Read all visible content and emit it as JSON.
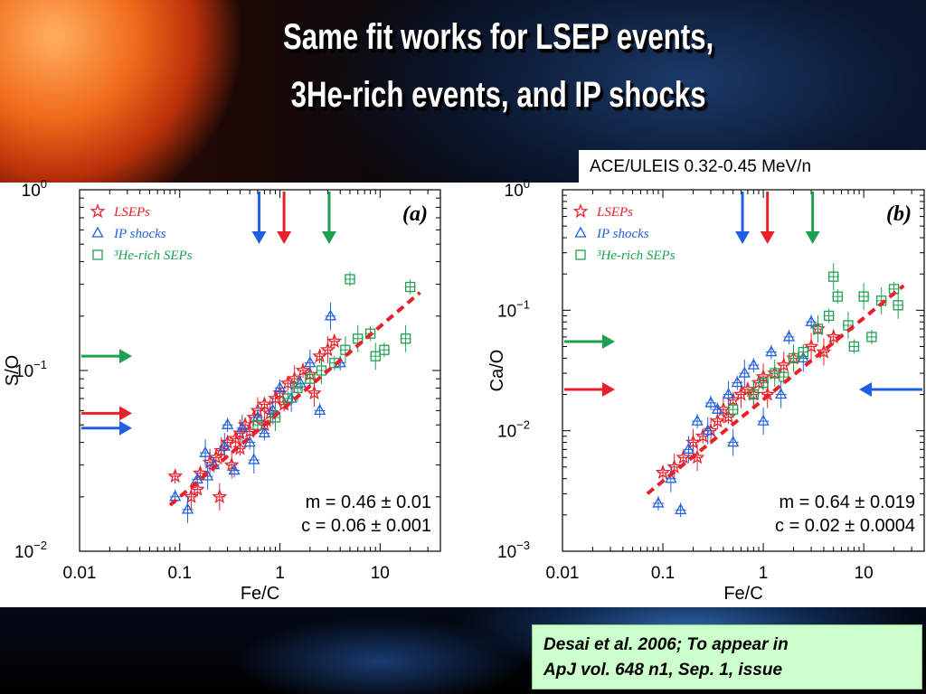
{
  "slide": {
    "title_line1": "Same fit works for  LSEP events,",
    "title_line2": "3He-rich events, and IP shocks",
    "instrument_label": "ACE/ULEIS 0.32-0.45 MeV/n",
    "citation_line1": "Desai et al. 2006; To appear in",
    "citation_line2": "ApJ vol. 648 n1, Sep. 1, issue"
  },
  "colors": {
    "lsep": "#e8202a",
    "ip": "#2060e0",
    "he3": "#1fa050"
  },
  "chart_data": [
    {
      "type": "scatter",
      "panel_label": "(a)",
      "xlabel": "Fe/C",
      "ylabel": "S/O",
      "x_scale": "log",
      "y_scale": "log",
      "xlim": [
        0.01,
        40
      ],
      "ylim": [
        0.01,
        1
      ],
      "x_ticks": [
        {
          "v": 0.01,
          "label": "0.01"
        },
        {
          "v": 0.1,
          "label": "0.1"
        },
        {
          "v": 1,
          "label": "1"
        },
        {
          "v": 10,
          "label": "10"
        }
      ],
      "y_ticks": [
        {
          "v": 1,
          "base": "10",
          "exp": "0"
        },
        {
          "v": 0.1,
          "base": "10",
          "exp": "−1"
        },
        {
          "v": 0.01,
          "base": "10",
          "exp": "−2"
        }
      ],
      "legend": [
        {
          "name": "LSEPs",
          "marker": "star"
        },
        {
          "name": "IP shocks",
          "marker": "triangle"
        },
        {
          "name": "³He-rich SEPs",
          "marker": "square"
        }
      ],
      "fit_text_m": "m =  0.46 ± 0.01",
      "fit_text_c": "c =  0.06 ± 0.001",
      "fit_line": {
        "x": [
          0.08,
          25
        ],
        "y": [
          0.018,
          0.27
        ]
      },
      "top_arrows": [
        {
          "series": "IP shocks",
          "x": 0.62
        },
        {
          "series": "LSEPs",
          "x": 1.1
        },
        {
          "series": "³He-rich SEPs",
          "x": 3.1
        }
      ],
      "left_arrows": [
        {
          "series": "³He-rich SEPs",
          "y": 0.12
        },
        {
          "series": "LSEPs",
          "y": 0.058
        },
        {
          "series": "IP shocks",
          "y": 0.048
        }
      ],
      "series": [
        {
          "name": "LSEPs",
          "points": [
            [
              0.09,
              0.026
            ],
            [
              0.13,
              0.02
            ],
            [
              0.16,
              0.027
            ],
            [
              0.2,
              0.031
            ],
            [
              0.23,
              0.033
            ],
            [
              0.26,
              0.036
            ],
            [
              0.3,
              0.04
            ],
            [
              0.33,
              0.03
            ],
            [
              0.36,
              0.042
            ],
            [
              0.4,
              0.045
            ],
            [
              0.45,
              0.05
            ],
            [
              0.5,
              0.046
            ],
            [
              0.55,
              0.055
            ],
            [
              0.6,
              0.06
            ],
            [
              0.7,
              0.065
            ],
            [
              0.8,
              0.058
            ],
            [
              0.9,
              0.07
            ],
            [
              1.0,
              0.075
            ],
            [
              1.2,
              0.085
            ],
            [
              1.4,
              0.09
            ],
            [
              1.7,
              0.1
            ],
            [
              2.0,
              0.095
            ],
            [
              2.5,
              0.12
            ],
            [
              3.0,
              0.13
            ],
            [
              3.5,
              0.145
            ],
            [
              0.25,
              0.02
            ],
            [
              0.4,
              0.037
            ],
            [
              0.7,
              0.05
            ],
            [
              1.1,
              0.065
            ],
            [
              2.2,
              0.075
            ],
            [
              0.15,
              0.022
            ]
          ]
        },
        {
          "name": "IP shocks",
          "points": [
            [
              0.09,
              0.02
            ],
            [
              0.12,
              0.017
            ],
            [
              0.15,
              0.025
            ],
            [
              0.18,
              0.035
            ],
            [
              0.22,
              0.03
            ],
            [
              0.28,
              0.038
            ],
            [
              0.35,
              0.028
            ],
            [
              0.42,
              0.048
            ],
            [
              0.5,
              0.04
            ],
            [
              0.6,
              0.055
            ],
            [
              0.7,
              0.045
            ],
            [
              0.85,
              0.06
            ],
            [
              1.0,
              0.08
            ],
            [
              1.3,
              0.07
            ],
            [
              1.6,
              0.085
            ],
            [
              2.0,
              0.11
            ],
            [
              2.5,
              0.06
            ],
            [
              3.2,
              0.2
            ],
            [
              4.0,
              0.11
            ],
            [
              0.55,
              0.032
            ],
            [
              0.3,
              0.05
            ],
            [
              0.19,
              0.026
            ]
          ]
        },
        {
          "name": "³He-rich SEPs",
          "points": [
            [
              0.6,
              0.05
            ],
            [
              0.9,
              0.055
            ],
            [
              1.2,
              0.07
            ],
            [
              1.5,
              0.08
            ],
            [
              2.0,
              0.09
            ],
            [
              2.6,
              0.1
            ],
            [
              3.5,
              0.11
            ],
            [
              4.5,
              0.13
            ],
            [
              5.0,
              0.32
            ],
            [
              6.0,
              0.15
            ],
            [
              8.0,
              0.16
            ],
            [
              9.0,
              0.12
            ],
            [
              11.0,
              0.13
            ],
            [
              18.0,
              0.15
            ],
            [
              20.0,
              0.29
            ]
          ]
        }
      ]
    },
    {
      "type": "scatter",
      "panel_label": "(b)",
      "xlabel": "Fe/C",
      "ylabel": "Ca/O",
      "x_scale": "log",
      "y_scale": "log",
      "xlim": [
        0.01,
        40
      ],
      "ylim": [
        0.001,
        1
      ],
      "x_ticks": [
        {
          "v": 0.01,
          "label": "0.01"
        },
        {
          "v": 0.1,
          "label": "0.1"
        },
        {
          "v": 1,
          "label": "1"
        },
        {
          "v": 10,
          "label": "10"
        }
      ],
      "y_ticks": [
        {
          "v": 1,
          "base": "10",
          "exp": "0"
        },
        {
          "v": 0.1,
          "base": "10",
          "exp": "−1"
        },
        {
          "v": 0.01,
          "base": "10",
          "exp": "−2"
        },
        {
          "v": 0.001,
          "base": "10",
          "exp": "−3"
        }
      ],
      "legend": [
        {
          "name": "LSEPs",
          "marker": "star"
        },
        {
          "name": "IP shocks",
          "marker": "triangle"
        },
        {
          "name": "³He-rich SEPs",
          "marker": "square"
        }
      ],
      "fit_text_m": "m =  0.64 ± 0.019",
      "fit_text_c": "c =  0.02 ± 0.0004",
      "fit_line": {
        "x": [
          0.07,
          25
        ],
        "y": [
          0.003,
          0.16
        ]
      },
      "top_arrows": [
        {
          "series": "IP shocks",
          "x": 0.62
        },
        {
          "series": "LSEPs",
          "x": 1.1
        },
        {
          "series": "³He-rich SEPs",
          "x": 3.1
        }
      ],
      "left_arrows": [
        {
          "series": "³He-rich SEPs",
          "y": 0.055
        },
        {
          "series": "LSEPs",
          "y": 0.022
        }
      ],
      "right_arrows": [
        {
          "series": "IP shocks",
          "y": 0.022
        }
      ],
      "series": [
        {
          "name": "LSEPs",
          "points": [
            [
              0.1,
              0.0045
            ],
            [
              0.13,
              0.005
            ],
            [
              0.16,
              0.006
            ],
            [
              0.2,
              0.008
            ],
            [
              0.25,
              0.009
            ],
            [
              0.3,
              0.01
            ],
            [
              0.35,
              0.012
            ],
            [
              0.4,
              0.015
            ],
            [
              0.5,
              0.018
            ],
            [
              0.6,
              0.02
            ],
            [
              0.7,
              0.022
            ],
            [
              0.8,
              0.02
            ],
            [
              0.9,
              0.025
            ],
            [
              1.0,
              0.028
            ],
            [
              1.3,
              0.03
            ],
            [
              1.6,
              0.035
            ],
            [
              2.0,
              0.04
            ],
            [
              3.0,
              0.05
            ],
            [
              3.5,
              0.07
            ],
            [
              4.0,
              0.045
            ],
            [
              5.0,
              0.06
            ],
            [
              0.22,
              0.006
            ],
            [
              0.45,
              0.013
            ],
            [
              1.1,
              0.02
            ]
          ]
        },
        {
          "name": "IP shocks",
          "points": [
            [
              0.09,
              0.0025
            ],
            [
              0.12,
              0.004
            ],
            [
              0.15,
              0.0022
            ],
            [
              0.18,
              0.007
            ],
            [
              0.22,
              0.012
            ],
            [
              0.28,
              0.01
            ],
            [
              0.35,
              0.015
            ],
            [
              0.45,
              0.02
            ],
            [
              0.55,
              0.025
            ],
            [
              0.65,
              0.03
            ],
            [
              0.8,
              0.035
            ],
            [
              1.0,
              0.012
            ],
            [
              1.2,
              0.045
            ],
            [
              1.5,
              0.02
            ],
            [
              1.8,
              0.06
            ],
            [
              2.5,
              0.04
            ],
            [
              3.0,
              0.08
            ],
            [
              0.5,
              0.008
            ],
            [
              0.3,
              0.017
            ]
          ]
        },
        {
          "name": "³He-rich SEPs",
          "points": [
            [
              0.5,
              0.015
            ],
            [
              0.8,
              0.02
            ],
            [
              1.0,
              0.025
            ],
            [
              1.3,
              0.03
            ],
            [
              1.6,
              0.028
            ],
            [
              2.0,
              0.04
            ],
            [
              2.5,
              0.045
            ],
            [
              3.5,
              0.07
            ],
            [
              4.5,
              0.09
            ],
            [
              5.0,
              0.19
            ],
            [
              5.5,
              0.13
            ],
            [
              7.0,
              0.075
            ],
            [
              8.0,
              0.05
            ],
            [
              10.0,
              0.13
            ],
            [
              12.0,
              0.06
            ],
            [
              15.0,
              0.12
            ],
            [
              20.0,
              0.15
            ],
            [
              22.0,
              0.11
            ]
          ]
        }
      ]
    }
  ]
}
